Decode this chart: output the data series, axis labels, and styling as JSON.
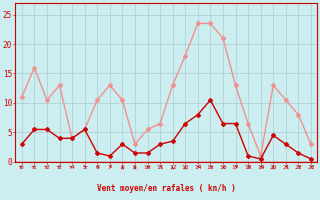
{
  "x": [
    0,
    1,
    2,
    3,
    4,
    5,
    6,
    7,
    8,
    9,
    10,
    11,
    12,
    13,
    14,
    15,
    16,
    17,
    18,
    19,
    20,
    21,
    22,
    23
  ],
  "rafales": [
    11,
    16,
    10.5,
    13,
    4,
    5.5,
    10.5,
    13,
    10.5,
    3,
    5.5,
    6.5,
    13,
    18,
    23.5,
    23.5,
    21,
    13,
    6.5,
    1,
    13,
    10.5,
    8,
    3
  ],
  "moyen": [
    3,
    5.5,
    5.5,
    4,
    4,
    5.5,
    1.5,
    1,
    3,
    1.5,
    1.5,
    3,
    3.5,
    6.5,
    8,
    10.5,
    6.5,
    6.5,
    1,
    0.5,
    4.5,
    3,
    1.5,
    0.5
  ],
  "ylabel_ticks": [
    0,
    5,
    10,
    15,
    20,
    25
  ],
  "xlabel": "Vent moyen/en rafales ( kn/h )",
  "bg_color": "#cceef0",
  "grid_color": "#aacccc",
  "rafales_color": "#f09090",
  "moyen_color": "#cc0000",
  "axis_color": "#cc0000",
  "text_color": "#cc0000",
  "ylim": [
    0,
    27
  ],
  "xlim": [
    -0.5,
    23.5
  ],
  "arrow_angles": [
    45,
    45,
    45,
    45,
    45,
    315,
    270,
    270,
    0,
    0,
    315,
    270,
    0,
    0,
    270,
    315,
    315,
    270,
    270,
    270,
    0,
    270,
    315,
    315
  ]
}
